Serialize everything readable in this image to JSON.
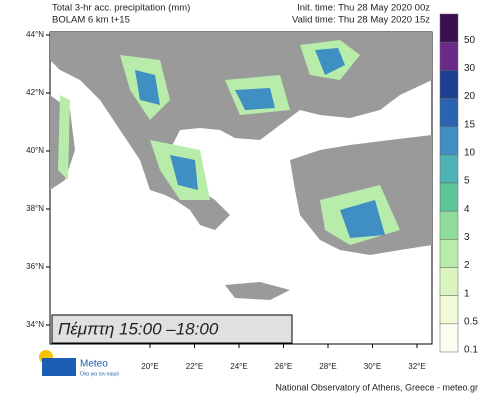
{
  "header": {
    "title": "Total 3-hr acc. precipitation (mm)",
    "model": "BOLAM 6 km t+15",
    "init_time": "Init. time: Thu 28 May 2020 00z",
    "valid_time": "Valid time: Thu 28 May 2020 15z"
  },
  "map": {
    "lat_labels": [
      "44°N",
      "42°N",
      "40°N",
      "38°N",
      "36°N",
      "34°N"
    ],
    "lon_labels": [
      "20°E",
      "22°E",
      "24°E",
      "26°E",
      "28°E",
      "30°E",
      "32°E"
    ],
    "period": "Πέμπτη 15:00 –18:00"
  },
  "legend": {
    "levels": [
      {
        "label": "50",
        "color": "#3b0f4f"
      },
      {
        "label": "30",
        "color": "#6a2a86"
      },
      {
        "label": "20",
        "color": "#1d3f8f"
      },
      {
        "label": "15",
        "color": "#2a64b0"
      },
      {
        "label": "10",
        "color": "#3f8fc2"
      },
      {
        "label": "5",
        "color": "#4fb3b5"
      },
      {
        "label": "4",
        "color": "#5cc59a"
      },
      {
        "label": "3",
        "color": "#8fdc9a"
      },
      {
        "label": "2",
        "color": "#b8ecaa"
      },
      {
        "label": "1",
        "color": "#dbf5c0"
      },
      {
        "label": "0.5",
        "color": "#f0fad8"
      },
      {
        "label": "0.1",
        "color": "#fbfdf0"
      }
    ]
  },
  "footer": {
    "logo_name": "Meteo",
    "logo_tagline": "Όλα για τον καιρό",
    "credit": "National Observatory of Athens, Greece - meteo.gr"
  }
}
